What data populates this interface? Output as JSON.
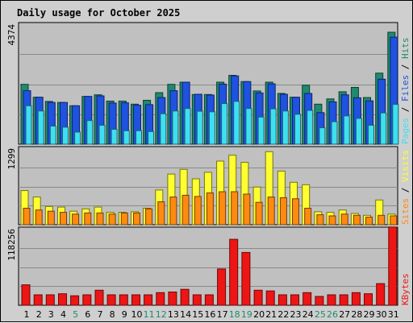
{
  "title": "Daily usage for October 2025",
  "colors": {
    "hits": "#1f8a6e",
    "files": "#1f52e0",
    "pages": "#3de0f0",
    "visits": "#ffff30",
    "sites": "#ff8a10",
    "kbytes": "#ee1515",
    "weekend_label": "#1f8a6e",
    "weekday_label": "#000000",
    "plot_bg": "#c0c0c0",
    "frame_bg": "#cfcfcf"
  },
  "chart_data": [
    {
      "type": "bar",
      "name": "hits-files-pages",
      "ymax_label": "4374",
      "ymax": 4374,
      "legend": [
        "Pages",
        "Files",
        "Hits"
      ],
      "legend_separator": "/",
      "categories": [
        "1",
        "2",
        "3",
        "4",
        "5",
        "6",
        "7",
        "8",
        "9",
        "10",
        "11",
        "12",
        "13",
        "14",
        "15",
        "16",
        "17",
        "18",
        "19",
        "20",
        "21",
        "22",
        "23",
        "24",
        "25",
        "26",
        "27",
        "28",
        "29",
        "30",
        "31"
      ],
      "series": [
        {
          "name": "Hits",
          "values": [
            2180,
            1710,
            1560,
            1520,
            1400,
            1740,
            1800,
            1570,
            1570,
            1460,
            1600,
            1880,
            2180,
            2260,
            1810,
            1810,
            2260,
            2510,
            2280,
            1940,
            2260,
            1850,
            1710,
            2150,
            1460,
            1650,
            1910,
            2070,
            1700,
            2590,
            4080
          ]
        },
        {
          "name": "Files",
          "values": [
            1950,
            1710,
            1520,
            1520,
            1400,
            1740,
            1760,
            1500,
            1510,
            1420,
            1440,
            1700,
            1950,
            2260,
            1820,
            1790,
            2190,
            2490,
            2280,
            1870,
            2200,
            1820,
            1710,
            1850,
            1150,
            1540,
            1800,
            1690,
            1580,
            2370,
            3900
          ]
        },
        {
          "name": "Pages",
          "values": [
            1400,
            1210,
            660,
            620,
            440,
            860,
            690,
            540,
            490,
            490,
            460,
            1110,
            1210,
            1300,
            1200,
            1180,
            1480,
            1560,
            1300,
            990,
            1290,
            1210,
            1090,
            1230,
            600,
            820,
            1030,
            940,
            690,
            1140,
            1450
          ]
        }
      ]
    },
    {
      "type": "bar",
      "name": "visits-sites",
      "ymax_label": "1299",
      "ymax": 1299,
      "legend": [
        "Sites",
        "Visits"
      ],
      "legend_separator": "/",
      "categories": [
        "1",
        "2",
        "3",
        "4",
        "5",
        "6",
        "7",
        "8",
        "9",
        "10",
        "11",
        "12",
        "13",
        "14",
        "15",
        "16",
        "17",
        "18",
        "19",
        "20",
        "21",
        "22",
        "23",
        "24",
        "25",
        "26",
        "27",
        "28",
        "29",
        "30",
        "31"
      ],
      "series": [
        {
          "name": "Visits",
          "values": [
            580,
            470,
            310,
            300,
            230,
            270,
            300,
            210,
            210,
            220,
            280,
            590,
            860,
            940,
            780,
            890,
            1080,
            1180,
            1060,
            640,
            1240,
            910,
            720,
            680,
            220,
            210,
            250,
            190,
            160,
            420,
            180
          ]
        },
        {
          "name": "Sites",
          "values": [
            280,
            250,
            230,
            210,
            180,
            200,
            200,
            180,
            200,
            200,
            270,
            390,
            470,
            500,
            480,
            540,
            560,
            560,
            520,
            380,
            470,
            460,
            440,
            280,
            170,
            150,
            180,
            160,
            130,
            160,
            150
          ]
        }
      ]
    },
    {
      "type": "bar",
      "name": "kbytes",
      "ymax_label": "118256",
      "ymax": 118256,
      "legend": [
        "KBytes"
      ],
      "categories": [
        "1",
        "2",
        "3",
        "4",
        "5",
        "6",
        "7",
        "8",
        "9",
        "10",
        "11",
        "12",
        "13",
        "14",
        "15",
        "16",
        "17",
        "18",
        "19",
        "20",
        "21",
        "22",
        "23",
        "24",
        "25",
        "26",
        "27",
        "28",
        "29",
        "30",
        "31"
      ],
      "series": [
        {
          "name": "KBytes",
          "values": [
            31600,
            16200,
            16200,
            17800,
            14700,
            16200,
            23300,
            16200,
            16200,
            16200,
            16200,
            19500,
            20600,
            24700,
            16200,
            16200,
            56200,
            102000,
            81600,
            23300,
            22200,
            16200,
            16200,
            19500,
            13700,
            16200,
            16200,
            19500,
            17800,
            33500,
            121000
          ]
        }
      ]
    }
  ],
  "weekend_days": [
    5,
    11,
    12,
    18,
    19,
    25,
    26
  ]
}
